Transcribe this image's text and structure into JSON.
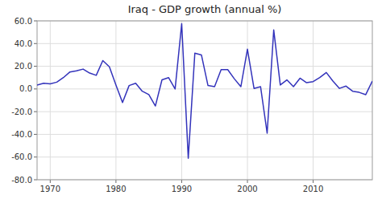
{
  "chart_data": {
    "type": "line",
    "title": "Iraq - GDP growth (annual %)",
    "x": [
      1968,
      1969,
      1970,
      1971,
      1972,
      1973,
      1974,
      1975,
      1976,
      1977,
      1978,
      1979,
      1980,
      1981,
      1982,
      1983,
      1984,
      1985,
      1986,
      1987,
      1988,
      1989,
      1990,
      1991,
      1992,
      1993,
      1994,
      1995,
      1996,
      1997,
      1998,
      1999,
      2000,
      2001,
      2002,
      2003,
      2004,
      2005,
      2006,
      2007,
      2008,
      2009,
      2010,
      2011,
      2012,
      2013,
      2014,
      2015,
      2016,
      2017,
      2018,
      2019
    ],
    "values": [
      3.5,
      5.0,
      4.5,
      6.0,
      10.0,
      15.0,
      16.0,
      17.5,
      14.0,
      12.0,
      25.0,
      19.5,
      3.5,
      -12.0,
      3.0,
      5.0,
      -2.0,
      -5.0,
      -15.0,
      8.0,
      10.0,
      0.0,
      57.5,
      -61.0,
      31.5,
      30.0,
      3.0,
      2.0,
      17.0,
      17.0,
      9.0,
      2.0,
      35.0,
      0.5,
      2.0,
      -39.0,
      52.0,
      3.5,
      8.0,
      2.0,
      9.5,
      5.5,
      6.5,
      10.0,
      14.5,
      7.0,
      0.5,
      2.5,
      -2.0,
      -3.0,
      -5.0,
      7.0
    ],
    "color": "#3333bb",
    "xlim": [
      1968,
      2019
    ],
    "ylim": [
      -80,
      60
    ],
    "xticks": [
      1970,
      1980,
      1990,
      2000,
      2010
    ],
    "yticks": [
      {
        "value": -80,
        "label": "-80.0"
      },
      {
        "value": -60,
        "label": "-60.0"
      },
      {
        "value": -40,
        "label": "-40.0"
      },
      {
        "value": -20,
        "label": "-20.0"
      },
      {
        "value": 0,
        "label": "0.0"
      },
      {
        "value": 20,
        "label": "20.0"
      },
      {
        "value": 40,
        "label": "40.0"
      },
      {
        "value": 60,
        "label": "60.0"
      }
    ],
    "grid": true
  }
}
